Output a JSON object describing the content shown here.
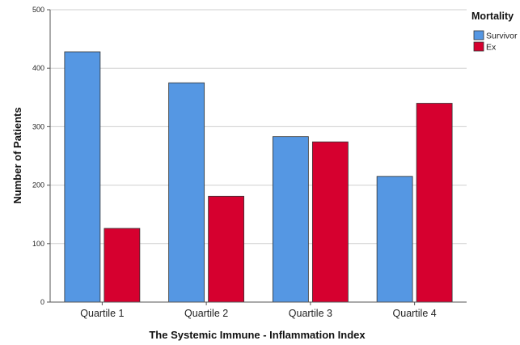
{
  "chart_data": {
    "type": "bar",
    "title": "",
    "xlabel": "The Systemic Immune - Inflammation Index",
    "ylabel": "Number of Patients",
    "categories": [
      "Quartile 1",
      "Quartile 2",
      "Quartile 3",
      "Quartile 4"
    ],
    "series": [
      {
        "name": "Survivor",
        "color": "#5597e3",
        "values": [
          428,
          375,
          283,
          215
        ]
      },
      {
        "name": "Ex",
        "color": "#d6002f",
        "values": [
          126,
          181,
          274,
          340
        ]
      }
    ],
    "ylim": [
      0,
      500
    ],
    "yticks": [
      "0",
      "100",
      "200",
      "300",
      "400",
      "500"
    ],
    "grid": true,
    "legend": {
      "title": "Mortality",
      "placement": "top-right"
    }
  }
}
